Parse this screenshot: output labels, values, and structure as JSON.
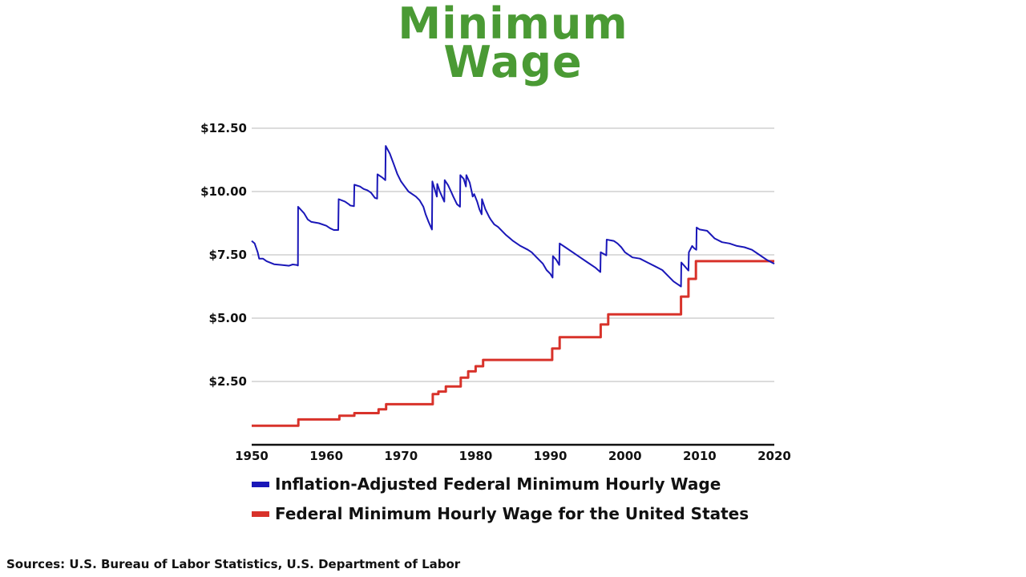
{
  "chart_data": {
    "type": "line",
    "title_lines": [
      "Minimum",
      "Wage"
    ],
    "xlim": [
      1950,
      2020
    ],
    "ylim": [
      0,
      12.5
    ],
    "y_ticks": [
      2.5,
      5.0,
      7.5,
      10.0,
      12.5
    ],
    "y_tick_labels": [
      "$2.50",
      "$5.00",
      "$7.50",
      "$10.00",
      "$12.50"
    ],
    "x_ticks": [
      1950,
      1960,
      1970,
      1980,
      1990,
      2000,
      2010,
      2020
    ],
    "x_tick_labels": [
      "1950",
      "1960",
      "1970",
      "1980",
      "1990",
      "2000",
      "2010",
      "2020"
    ],
    "grid": true,
    "legend_position": "bottom",
    "series": [
      {
        "name": "Inflation-Adjusted Federal Minimum Hourly Wage",
        "color": "#1a17b8",
        "style": "line",
        "points": [
          [
            1950.0,
            8.05
          ],
          [
            1950.4,
            7.95
          ],
          [
            1950.8,
            7.6
          ],
          [
            1951.0,
            7.35
          ],
          [
            1951.5,
            7.35
          ],
          [
            1952.0,
            7.25
          ],
          [
            1953.0,
            7.13
          ],
          [
            1954.0,
            7.1
          ],
          [
            1955.0,
            7.07
          ],
          [
            1955.5,
            7.12
          ],
          [
            1956.0,
            7.1
          ],
          [
            1956.2,
            7.08
          ],
          [
            1956.22,
            9.4
          ],
          [
            1957.0,
            9.15
          ],
          [
            1957.5,
            8.9
          ],
          [
            1958.0,
            8.8
          ],
          [
            1959.0,
            8.75
          ],
          [
            1960.0,
            8.65
          ],
          [
            1960.5,
            8.55
          ],
          [
            1961.0,
            8.48
          ],
          [
            1961.6,
            8.48
          ],
          [
            1961.65,
            9.7
          ],
          [
            1962.5,
            9.6
          ],
          [
            1963.0,
            9.5
          ],
          [
            1963.2,
            9.45
          ],
          [
            1963.7,
            9.42
          ],
          [
            1963.75,
            10.27
          ],
          [
            1964.5,
            10.2
          ],
          [
            1965.0,
            10.1
          ],
          [
            1965.5,
            10.05
          ],
          [
            1966.0,
            9.95
          ],
          [
            1966.5,
            9.75
          ],
          [
            1966.8,
            9.72
          ],
          [
            1966.85,
            10.68
          ],
          [
            1967.5,
            10.55
          ],
          [
            1967.9,
            10.45
          ],
          [
            1967.95,
            11.8
          ],
          [
            1968.5,
            11.5
          ],
          [
            1969.0,
            11.1
          ],
          [
            1969.5,
            10.7
          ],
          [
            1970.0,
            10.4
          ],
          [
            1970.5,
            10.2
          ],
          [
            1971.0,
            10.0
          ],
          [
            1972.0,
            9.8
          ],
          [
            1972.5,
            9.65
          ],
          [
            1973.0,
            9.4
          ],
          [
            1973.3,
            9.1
          ],
          [
            1973.7,
            8.8
          ],
          [
            1974.0,
            8.6
          ],
          [
            1974.15,
            8.5
          ],
          [
            1974.2,
            10.4
          ],
          [
            1974.5,
            10.1
          ],
          [
            1974.8,
            9.8
          ],
          [
            1974.85,
            10.3
          ],
          [
            1975.2,
            10.0
          ],
          [
            1975.5,
            9.8
          ],
          [
            1975.8,
            9.6
          ],
          [
            1975.85,
            10.45
          ],
          [
            1976.3,
            10.25
          ],
          [
            1976.7,
            10.0
          ],
          [
            1977.0,
            9.8
          ],
          [
            1977.5,
            9.5
          ],
          [
            1977.9,
            9.4
          ],
          [
            1977.95,
            10.65
          ],
          [
            1978.4,
            10.5
          ],
          [
            1978.7,
            10.2
          ],
          [
            1978.75,
            10.65
          ],
          [
            1979.2,
            10.35
          ],
          [
            1979.5,
            9.95
          ],
          [
            1979.6,
            9.8
          ],
          [
            1979.8,
            9.9
          ],
          [
            1980.2,
            9.6
          ],
          [
            1980.5,
            9.3
          ],
          [
            1980.8,
            9.1
          ],
          [
            1980.85,
            9.7
          ],
          [
            1981.3,
            9.3
          ],
          [
            1981.8,
            9.0
          ],
          [
            1982.0,
            8.9
          ],
          [
            1982.5,
            8.7
          ],
          [
            1983.0,
            8.6
          ],
          [
            1984.0,
            8.3
          ],
          [
            1985.0,
            8.05
          ],
          [
            1986.0,
            7.85
          ],
          [
            1987.0,
            7.7
          ],
          [
            1987.5,
            7.6
          ],
          [
            1988.0,
            7.45
          ],
          [
            1988.5,
            7.3
          ],
          [
            1989.0,
            7.15
          ],
          [
            1989.5,
            6.9
          ],
          [
            1990.0,
            6.75
          ],
          [
            1990.3,
            6.6
          ],
          [
            1990.35,
            7.45
          ],
          [
            1990.8,
            7.3
          ],
          [
            1991.2,
            7.1
          ],
          [
            1991.25,
            7.95
          ],
          [
            1992.0,
            7.8
          ],
          [
            1993.0,
            7.6
          ],
          [
            1994.0,
            7.4
          ],
          [
            1995.0,
            7.2
          ],
          [
            1996.0,
            7.0
          ],
          [
            1996.7,
            6.82
          ],
          [
            1996.75,
            7.6
          ],
          [
            1997.5,
            7.48
          ],
          [
            1997.55,
            8.1
          ],
          [
            1998.5,
            8.05
          ],
          [
            1999.0,
            7.95
          ],
          [
            1999.5,
            7.8
          ],
          [
            2000.0,
            7.6
          ],
          [
            2001.0,
            7.4
          ],
          [
            2002.0,
            7.35
          ],
          [
            2003.0,
            7.2
          ],
          [
            2004.0,
            7.05
          ],
          [
            2005.0,
            6.9
          ],
          [
            2005.5,
            6.75
          ],
          [
            2006.0,
            6.6
          ],
          [
            2006.5,
            6.45
          ],
          [
            2007.0,
            6.35
          ],
          [
            2007.5,
            6.25
          ],
          [
            2007.55,
            7.2
          ],
          [
            2008.0,
            7.05
          ],
          [
            2008.5,
            6.88
          ],
          [
            2008.55,
            7.6
          ],
          [
            2009.0,
            7.85
          ],
          [
            2009.3,
            7.75
          ],
          [
            2009.55,
            7.7
          ],
          [
            2009.6,
            8.58
          ],
          [
            2010.0,
            8.5
          ],
          [
            2011.0,
            8.45
          ],
          [
            2012.0,
            8.15
          ],
          [
            2013.0,
            8.0
          ],
          [
            2014.0,
            7.95
          ],
          [
            2015.0,
            7.85
          ],
          [
            2016.0,
            7.8
          ],
          [
            2017.0,
            7.7
          ],
          [
            2018.0,
            7.5
          ],
          [
            2019.0,
            7.3
          ],
          [
            2020.0,
            7.15
          ]
        ]
      },
      {
        "name": "Federal Minimum Hourly Wage for the United States",
        "color": "#d8322a",
        "style": "step",
        "points": [
          [
            1950.0,
            0.75
          ],
          [
            1956.25,
            1.0
          ],
          [
            1961.75,
            1.15
          ],
          [
            1963.75,
            1.25
          ],
          [
            1967.0,
            1.4
          ],
          [
            1968.0,
            1.6
          ],
          [
            1974.25,
            2.0
          ],
          [
            1975.0,
            2.1
          ],
          [
            1976.0,
            2.3
          ],
          [
            1978.0,
            2.65
          ],
          [
            1979.0,
            2.9
          ],
          [
            1980.0,
            3.1
          ],
          [
            1981.0,
            3.35
          ],
          [
            1990.25,
            3.8
          ],
          [
            1991.25,
            4.25
          ],
          [
            1996.75,
            4.75
          ],
          [
            1997.75,
            5.15
          ],
          [
            2007.5,
            5.85
          ],
          [
            2008.5,
            6.55
          ],
          [
            2009.5,
            7.25
          ],
          [
            2020.0,
            7.25
          ]
        ]
      }
    ],
    "source": "Sources: U.S. Bureau of Labor Statistics, U.S. Department of Labor"
  }
}
